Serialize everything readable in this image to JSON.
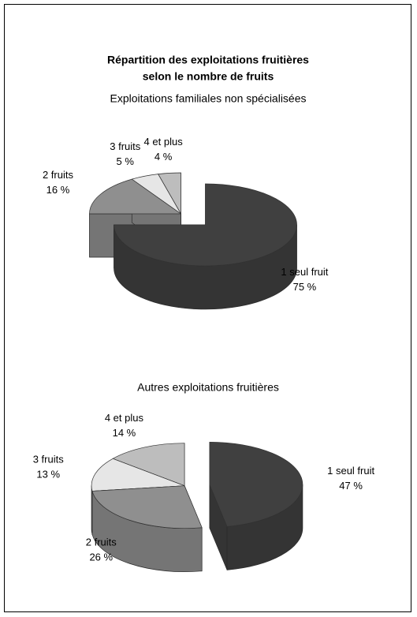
{
  "title": [
    "Répartition des exploitations fruitières",
    "selon le nombre de fruits"
  ],
  "chart_data": [
    {
      "type": "pie",
      "title": "Exploitations familiales non spécialisées",
      "categories": [
        "1 seul fruit",
        "2 fruits",
        "3 fruits",
        "4 et plus"
      ],
      "values": [
        75,
        16,
        5,
        4
      ],
      "value_labels": [
        "75 %",
        "16 %",
        "5 %",
        "4 %"
      ],
      "colors": [
        "#404040",
        "#8f8f8f",
        "#e6e6e6",
        "#bdbdbd"
      ]
    },
    {
      "type": "pie",
      "title": "Autres exploitations fruitières",
      "categories": [
        "1 seul fruit",
        "2 fruits",
        "3 fruits",
        "4 et plus"
      ],
      "values": [
        47,
        26,
        13,
        14
      ],
      "value_labels": [
        "47 %",
        "26 %",
        "13 %",
        "14 %"
      ],
      "colors": [
        "#404040",
        "#8f8f8f",
        "#e6e6e6",
        "#bdbdbd"
      ]
    }
  ]
}
